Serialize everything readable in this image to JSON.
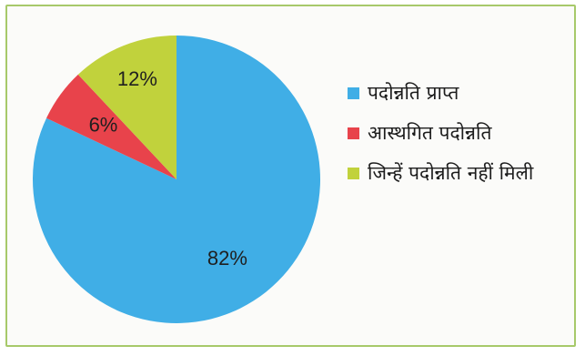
{
  "chart_data": {
    "type": "pie",
    "slices": [
      {
        "label": "पदोन्नति प्राप्त",
        "value": 82,
        "value_label": "82%",
        "color": "#40aee6"
      },
      {
        "label": "आस्थगित पदोन्नति",
        "value": 6,
        "value_label": "6%",
        "color": "#e8434b"
      },
      {
        "label": "जिन्हें पदोन्नति नहीं मिली",
        "value": 12,
        "value_label": "12%",
        "color": "#c1d23c"
      }
    ],
    "start": "12 o'clock",
    "direction": "clockwise",
    "legend_position": "right"
  },
  "colors": {
    "frame_border": "#a7c96a",
    "background": "#fbfbf9"
  }
}
